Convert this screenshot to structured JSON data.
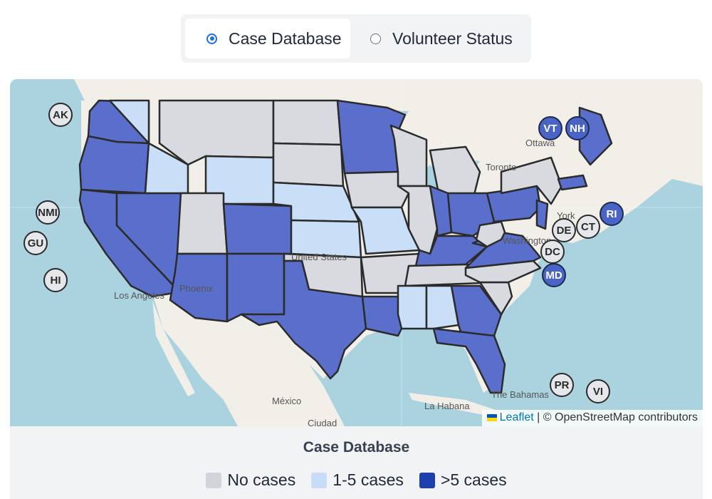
{
  "toggle": {
    "options": [
      {
        "label": "Case Database",
        "selected": true
      },
      {
        "label": "Volunteer Status",
        "selected": false
      }
    ]
  },
  "map": {
    "place_labels": [
      "Ottawa",
      "Toronto",
      "Phoenix",
      "Los Angeles",
      "United States",
      "México",
      "La Habana",
      "The Bahamas",
      "Ciudad",
      "York",
      "Washington"
    ],
    "attribution": {
      "leaflet": "Leaflet",
      "separator": "|",
      "osm": "© OpenStreetMap contributors"
    },
    "badges": [
      {
        "code": "AK",
        "category": "none"
      },
      {
        "code": "NMI",
        "category": "none"
      },
      {
        "code": "GU",
        "category": "none"
      },
      {
        "code": "HI",
        "category": "none"
      },
      {
        "code": "VT",
        "category": "many"
      },
      {
        "code": "NH",
        "category": "many"
      },
      {
        "code": "RI",
        "category": "many"
      },
      {
        "code": "CT",
        "category": "none"
      },
      {
        "code": "DE",
        "category": "none"
      },
      {
        "code": "DC",
        "category": "none"
      },
      {
        "code": "MD",
        "category": "many"
      },
      {
        "code": "PR",
        "category": "none"
      },
      {
        "code": "VI",
        "category": "none"
      }
    ],
    "states": {
      "WA": "many",
      "OR": "many",
      "CA": "many",
      "NV": "many",
      "ID": "few",
      "MT": "none",
      "WY": "few",
      "UT": "none",
      "AZ": "many",
      "CO": "many",
      "NM": "many",
      "ND": "none",
      "SD": "none",
      "NE": "few",
      "KS": "few",
      "OK": "none",
      "TX": "many",
      "MN": "many",
      "IA": "none",
      "MO": "few",
      "AR": "none",
      "LA": "many",
      "WI": "none",
      "IL": "none",
      "MI": "none",
      "IN": "many",
      "OH": "many",
      "KY": "many",
      "TN": "none",
      "MS": "few",
      "AL": "few",
      "GA": "many",
      "FL": "many",
      "SC": "none",
      "NC": "none",
      "VA": "many",
      "WV": "none",
      "PA": "many",
      "NY": "none",
      "NJ": "many",
      "MA": "many",
      "ME": "many"
    }
  },
  "legend": {
    "title": "Case Database",
    "items": [
      {
        "label": "No cases",
        "color": "#d1d5db"
      },
      {
        "label": "1-5 cases",
        "color": "#c7ddf7"
      },
      {
        "label": ">5 cases",
        "color": "#1e40af"
      }
    ]
  },
  "colors": {
    "none": "#d8dadf",
    "few": "#c9def7",
    "many": "#5a6fcb",
    "water": "#aad3df",
    "land": "#f2efe9",
    "accent": "#1d6ef0"
  }
}
